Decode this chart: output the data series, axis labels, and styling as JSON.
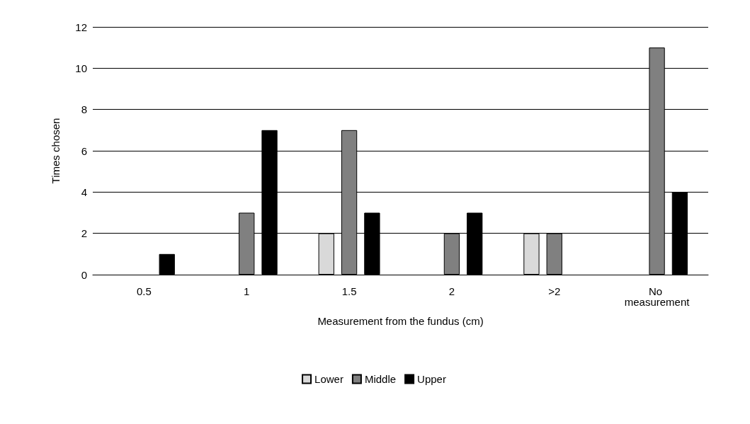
{
  "chart_data": {
    "type": "bar",
    "xlabel": "Measurement from the fundus (cm)",
    "ylabel": "Times chosen",
    "categories": [
      "0.5",
      "1",
      "1.5",
      "2",
      ">2",
      "No measurement"
    ],
    "series": [
      {
        "name": "Lower",
        "color": "#d9d9d9",
        "values": [
          0,
          0,
          2,
          0,
          2,
          0
        ]
      },
      {
        "name": "Middle",
        "color": "#808080",
        "values": [
          0,
          3,
          7,
          2,
          2,
          11
        ]
      },
      {
        "name": "Upper",
        "color": "#000000",
        "values": [
          1,
          7,
          3,
          3,
          0,
          4
        ]
      }
    ],
    "ylim": [
      0,
      12
    ],
    "yticks": [
      0,
      2,
      4,
      6,
      8,
      10,
      12
    ],
    "grid": "y",
    "legend": "bottom"
  }
}
